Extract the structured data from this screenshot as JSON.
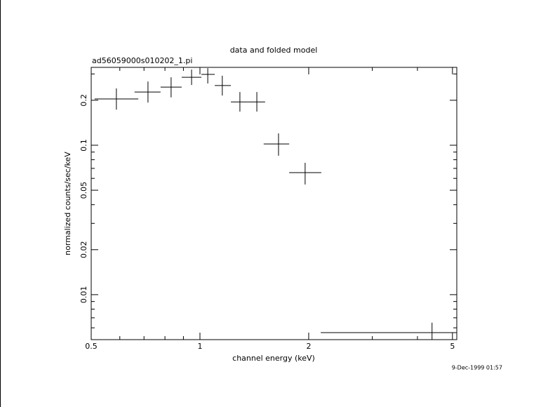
{
  "chart_data": {
    "type": "scatter",
    "title": "data and folded model",
    "subtitle": "ad56059000s010202_1.pi",
    "x_label": "channel energy (keV)",
    "y_label": "normalized counts/sec/keV",
    "timestamp": "9-Dec-1999 01:57",
    "x_log": true,
    "y_log": true,
    "color": "#000000",
    "xlim": [
      0.5,
      5.14
    ],
    "ylim": [
      0.005,
      0.332
    ],
    "xticks": [
      0.5,
      1,
      2,
      5
    ],
    "xminor_ticks": [
      0.6,
      0.7,
      0.8,
      0.9,
      3,
      4
    ],
    "yticks": [
      0.01,
      0.02,
      0.05,
      0.1,
      0.2
    ],
    "yminor_ticks": [
      0.006,
      0.007,
      0.008,
      0.009,
      0.03,
      0.04,
      0.06,
      0.07,
      0.08,
      0.09,
      0.3
    ],
    "x": [
      0.587,
      0.718,
      0.832,
      0.948,
      1.051,
      1.153,
      1.29,
      1.437,
      1.65,
      1.955,
      4.39
    ],
    "x_lo": [
      0.511,
      0.659,
      0.778,
      0.89,
      1.009,
      1.099,
      1.218,
      1.361,
      1.501,
      1.766,
      2.16
    ],
    "x_hi": [
      0.675,
      0.778,
      0.89,
      1.009,
      1.099,
      1.218,
      1.361,
      1.515,
      1.766,
      2.167,
      5.14
    ],
    "values": [
      0.204,
      0.227,
      0.245,
      0.285,
      0.298,
      0.251,
      0.195,
      0.195,
      0.102,
      0.0656,
      0.00557
    ],
    "y_lo": [
      0.173,
      0.193,
      0.209,
      0.253,
      0.259,
      0.215,
      0.168,
      0.168,
      0.0851,
      0.0546,
      0.005
    ],
    "y_hi": [
      0.24,
      0.267,
      0.285,
      0.321,
      0.328,
      0.292,
      0.227,
      0.227,
      0.12,
      0.0763,
      0.00649
    ]
  }
}
